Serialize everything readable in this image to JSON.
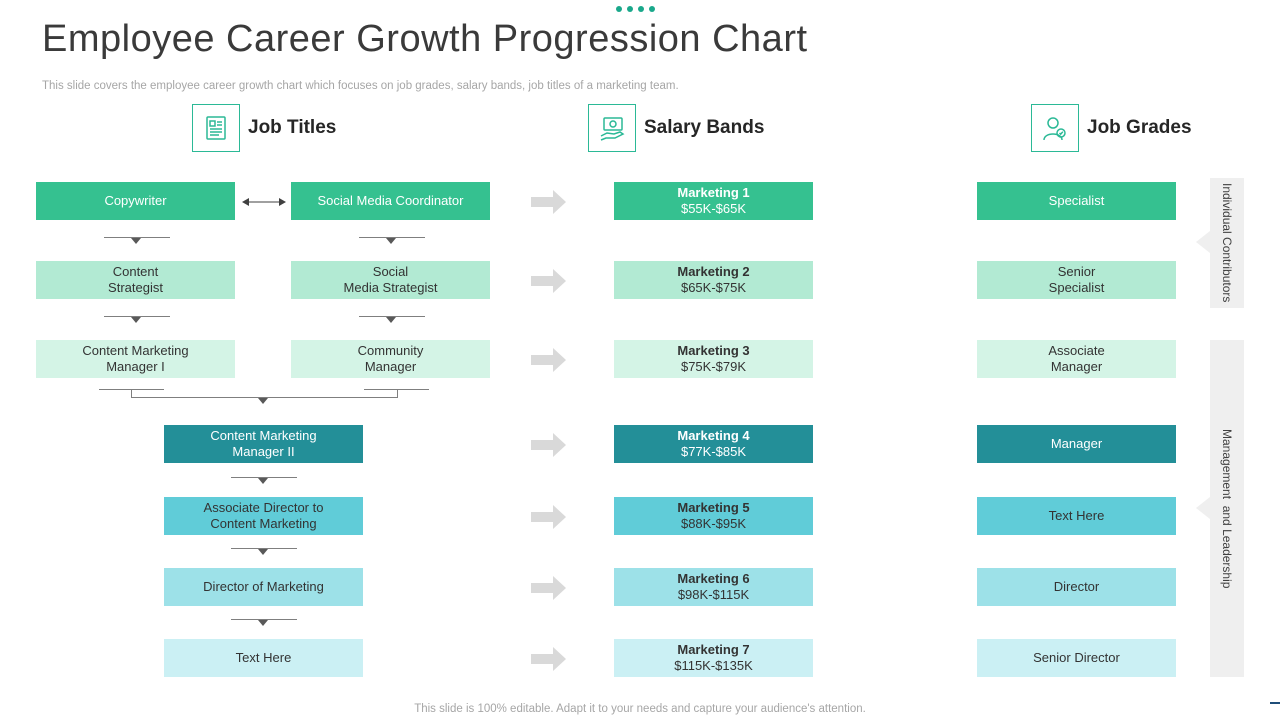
{
  "header": {
    "title": "Employee Career Growth Progression Chart",
    "subtitle": "This slide covers the employee career growth chart which focuses on job grades, salary bands, job titles of a marketing team."
  },
  "footer": {
    "text": "This slide is 100% editable. Adapt it to your needs and capture your audience's attention."
  },
  "columns": {
    "job_titles": {
      "label": "Job Titles",
      "icon": "document-icon"
    },
    "salary_bands": {
      "label": "Salary Bands",
      "icon": "money-hand-icon"
    },
    "job_grades": {
      "label": "Job Grades",
      "icon": "employee-icon"
    }
  },
  "job_titles": {
    "copywriter": "Copywriter",
    "social_media_coordinator": "Social Media Coordinator",
    "content_strategist": "Content\nStrategist",
    "social_media_strategist": "Social\nMedia Strategist",
    "content_marketing_manager_1": "Content Marketing\nManager I",
    "community_manager": "Community\nManager",
    "content_marketing_manager_2": "Content Marketing\nManager II",
    "associate_director": "Associate Director to\nContent Marketing",
    "director_marketing": "Director of Marketing",
    "text_here": "Text Here"
  },
  "salary_bands": [
    {
      "name": "Marketing 1",
      "range": "$55K-$65K"
    },
    {
      "name": "Marketing 2",
      "range": "$65K-$75K"
    },
    {
      "name": "Marketing 3",
      "range": "$75K-$79K"
    },
    {
      "name": "Marketing 4",
      "range": "$77K-$85K"
    },
    {
      "name": "Marketing 5",
      "range": "$88K-$95K"
    },
    {
      "name": "Marketing 6",
      "range": "$98K-$115K"
    },
    {
      "name": "Marketing 7",
      "range": "$115K-$135K"
    }
  ],
  "job_grades": [
    "Specialist",
    "Senior\nSpecialist",
    "Associate\nManager",
    "Manager",
    "Text Here",
    "Director",
    "Senior Director"
  ],
  "categories": {
    "individual_contributors": "Individual Contributors",
    "management_leadership": "Management  and Leadership"
  },
  "colors": {
    "level1": "#35c190",
    "level2": "#b2ead3",
    "level3": "#d4f4e6",
    "level4": "#238f98",
    "level5": "#60ccd8",
    "level6": "#9de1e8",
    "level7": "#cbf0f4",
    "accent": "#1aa88b"
  }
}
